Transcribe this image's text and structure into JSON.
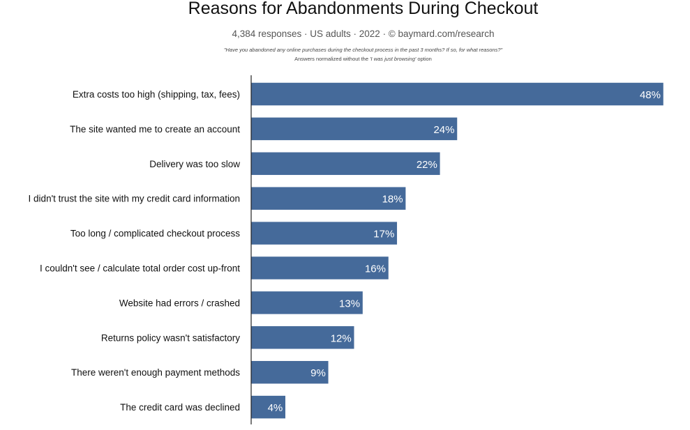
{
  "header": {
    "title": "Reasons for Abandonments During Checkout",
    "subtitle": "4,384 responses  ·  US adults  ·  2022  ·  ©  baymard.com/research",
    "question": "\"Have you abandoned any online purchases during the checkout process in the past 3 months? If so, for what reasons?\"",
    "note_prefix": "Answers normalized without the ",
    "note_option": "'I was just browsing'",
    "note_suffix": " option"
  },
  "colors": {
    "bar": "#456a9a",
    "bar_edge": "#ffffff",
    "axis": "#222222",
    "value_text": "#ffffff"
  },
  "chart_data": {
    "type": "bar",
    "orientation": "horizontal",
    "categories": [
      "Extra costs too high (shipping, tax, fees)",
      "The site wanted me to create an account",
      "Delivery was too slow",
      "I didn't trust the site with my credit card information",
      "Too long / complicated checkout process",
      "I couldn't see / calculate total order cost up-front",
      "Website had errors / crashed",
      "Returns policy wasn't satisfactory",
      "There weren't enough payment methods",
      "The credit card was declined"
    ],
    "values": [
      48,
      24,
      22,
      18,
      17,
      16,
      13,
      12,
      9,
      4
    ],
    "value_labels": [
      "48%",
      "24%",
      "22%",
      "18%",
      "17%",
      "16%",
      "13%",
      "12%",
      "9%",
      "4%"
    ],
    "unit": "%",
    "xlim": [
      0,
      48
    ],
    "grid": false,
    "legend": "none"
  }
}
